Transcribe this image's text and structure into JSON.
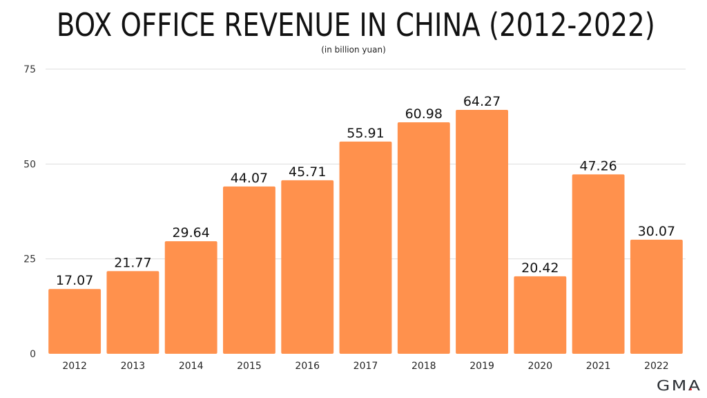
{
  "chart_data": {
    "type": "bar",
    "title": "BOX OFFICE REVENUE IN CHINA (2012-2022)",
    "subtitle": "(in billion yuan)",
    "categories": [
      "2012",
      "2013",
      "2014",
      "2015",
      "2016",
      "2017",
      "2018",
      "2019",
      "2020",
      "2021",
      "2022"
    ],
    "values": [
      17.07,
      21.77,
      29.64,
      44.07,
      45.71,
      55.91,
      60.98,
      64.27,
      20.42,
      47.26,
      30.07
    ],
    "data_labels": [
      "17.07",
      "21.77",
      "29.64",
      "44.07",
      "45.71",
      "55.91",
      "60.98",
      "64.27",
      "20.42",
      "47.26",
      "30.07"
    ],
    "xlabel": "",
    "ylabel": "",
    "ylim": [
      0,
      75
    ],
    "yticks": [
      "0",
      "25",
      "50",
      "75"
    ],
    "grid": true,
    "bar_color": "#FF914D"
  },
  "logo": "GMA"
}
